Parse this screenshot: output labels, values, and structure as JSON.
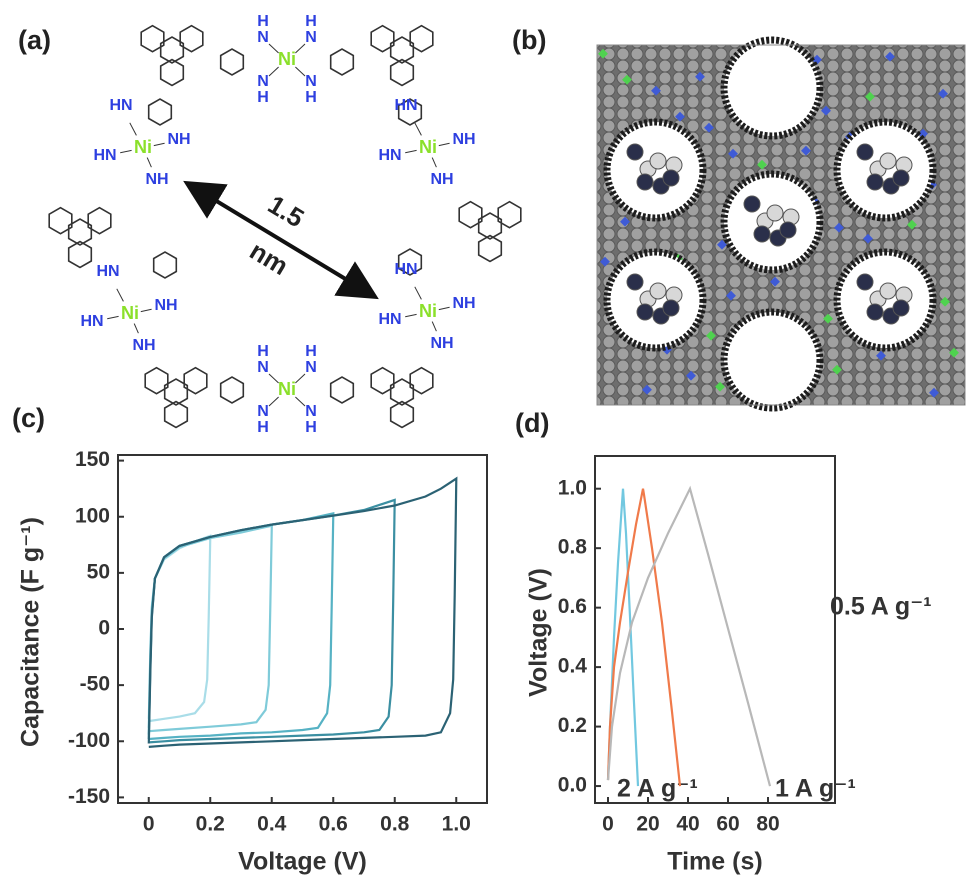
{
  "panel_labels": [
    "(a)",
    "(b)",
    "(c)",
    "(d)"
  ],
  "structure": {
    "metal": "Ni",
    "nh": "NH",
    "hn": "HN",
    "h": "H",
    "n": "N",
    "distance": "1.5",
    "distance_unit": "nm"
  },
  "chart_data": [
    {
      "type": "line",
      "x_label": "Voltage (V)",
      "y_label": "Capacitance (F g⁻¹)",
      "xlim": [
        -0.1,
        1.1
      ],
      "ylim": [
        -155,
        155
      ],
      "xticks": [
        0,
        0.2,
        0.4,
        0.6,
        0.8,
        {
          "value": 1,
          "label": "1.0"
        }
      ],
      "yticks": [
        -150,
        -100,
        -50,
        0,
        50,
        100,
        150
      ],
      "series": [
        {
          "color": "#a9dde8",
          "x": [
            0,
            0.005,
            0.01,
            0.02,
            0.05,
            0.1,
            0.15,
            0.2,
            0.195,
            0.19,
            0.18,
            0.15,
            0.1,
            0.05,
            0
          ],
          "values": [
            -80,
            -20,
            20,
            45,
            62,
            72,
            78,
            83,
            10,
            -45,
            -65,
            -75,
            -78,
            -80,
            -82
          ]
        },
        {
          "color": "#7fcbd9",
          "x": [
            0,
            0.005,
            0.01,
            0.02,
            0.05,
            0.1,
            0.2,
            0.3,
            0.4,
            0.395,
            0.39,
            0.38,
            0.35,
            0.3,
            0.2,
            0.1,
            0.05,
            0
          ],
          "values": [
            -88,
            -25,
            18,
            45,
            63,
            73,
            81,
            86,
            92,
            15,
            -50,
            -72,
            -83,
            -85,
            -87,
            -89,
            -90,
            -91
          ]
        },
        {
          "color": "#56b2c4",
          "x": [
            0,
            0.005,
            0.01,
            0.02,
            0.05,
            0.1,
            0.2,
            0.3,
            0.4,
            0.5,
            0.6,
            0.595,
            0.59,
            0.58,
            0.55,
            0.5,
            0.4,
            0.3,
            0.2,
            0.1,
            0.05,
            0
          ],
          "values": [
            -94,
            -30,
            15,
            45,
            64,
            74,
            82,
            88,
            93,
            97,
            103,
            20,
            -50,
            -75,
            -88,
            -90,
            -92,
            -93,
            -95,
            -96,
            -97,
            -98
          ]
        },
        {
          "color": "#3b8fa2",
          "x": [
            0,
            0.005,
            0.01,
            0.02,
            0.05,
            0.1,
            0.2,
            0.3,
            0.4,
            0.5,
            0.6,
            0.7,
            0.8,
            0.795,
            0.79,
            0.78,
            0.75,
            0.7,
            0.6,
            0.5,
            0.4,
            0.3,
            0.2,
            0.1,
            0.05,
            0
          ],
          "values": [
            -98,
            -35,
            12,
            45,
            64,
            74,
            82,
            88,
            93,
            97,
            101,
            106,
            115,
            25,
            -50,
            -78,
            -90,
            -92,
            -94,
            -95,
            -96,
            -97,
            -98,
            -99,
            -100,
            -101
          ]
        },
        {
          "color": "#2b6274",
          "x": [
            0,
            0.005,
            0.01,
            0.02,
            0.05,
            0.1,
            0.2,
            0.3,
            0.4,
            0.5,
            0.6,
            0.7,
            0.8,
            0.9,
            0.95,
            1,
            0.995,
            0.99,
            0.98,
            0.95,
            0.9,
            0.8,
            0.7,
            0.6,
            0.5,
            0.4,
            0.3,
            0.2,
            0.1,
            0.05,
            0
          ],
          "values": [
            -102,
            -40,
            10,
            45,
            64,
            74,
            82,
            88,
            93,
            97,
            101,
            105,
            110,
            118,
            125,
            134,
            30,
            -45,
            -75,
            -92,
            -95,
            -96,
            -97,
            -98,
            -99,
            -100,
            -101,
            -102,
            -103,
            -104,
            -105
          ]
        }
      ]
    },
    {
      "type": "line",
      "x_label": "Time (s)",
      "y_label": "Voltage (V)",
      "xlim": [
        -6.5,
        113.5
      ],
      "ylim": [
        -0.057,
        1.11
      ],
      "xticks": [
        0,
        20,
        40,
        60,
        80
      ],
      "yticks": [
        {
          "value": 0,
          "label": "0.0"
        },
        0.2,
        0.4,
        0.6,
        0.8,
        {
          "value": 1,
          "label": "1.0"
        }
      ],
      "series": [
        {
          "name": "2 A g⁻¹",
          "color": "#72c8e0",
          "x": [
            0,
            1,
            3,
            5,
            7.5,
            9,
            11,
            13,
            15
          ],
          "values": [
            0.02,
            0.2,
            0.5,
            0.75,
            1,
            0.85,
            0.57,
            0.28,
            0
          ]
        },
        {
          "name": "1 A g⁻¹",
          "color": "#f07a4a",
          "x": [
            0,
            1,
            3,
            6,
            10,
            14,
            17.5,
            18,
            22,
            27,
            32,
            36
          ],
          "values": [
            0.02,
            0.2,
            0.4,
            0.55,
            0.72,
            0.88,
            1,
            0.98,
            0.8,
            0.55,
            0.25,
            0
          ]
        },
        {
          "name": "0.5 A g⁻¹",
          "color": "#b8b8b8",
          "x": [
            0,
            2,
            6,
            12,
            20,
            30,
            41,
            50,
            60,
            70,
            81
          ],
          "values": [
            0.02,
            0.2,
            0.38,
            0.55,
            0.7,
            0.85,
            1,
            0.78,
            0.53,
            0.28,
            0
          ]
        }
      ]
    }
  ]
}
